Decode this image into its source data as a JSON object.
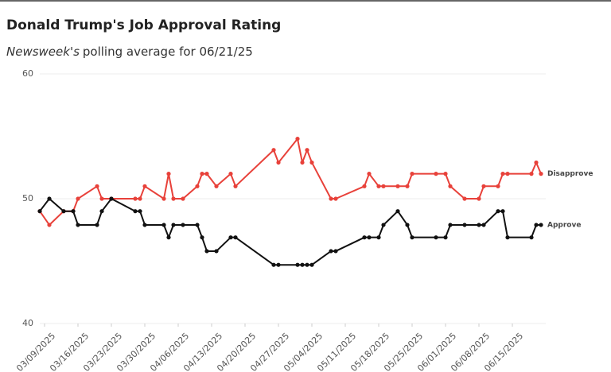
{
  "chart_data": {
    "type": "line",
    "title": "Donald Trump's Job Approval Rating",
    "subtitle_source": "Newsweek's",
    "subtitle": "polling average for 06/21/25",
    "x": [
      "2025-03-08",
      "2025-03-10",
      "2025-03-13",
      "2025-03-15",
      "2025-03-16",
      "2025-03-20",
      "2025-03-21",
      "2025-03-23",
      "2025-03-28",
      "2025-03-29",
      "2025-03-30",
      "2025-04-03",
      "2025-04-04",
      "2025-04-05",
      "2025-04-07",
      "2025-04-10",
      "2025-04-11",
      "2025-04-12",
      "2025-04-14",
      "2025-04-17",
      "2025-04-18",
      "2025-04-26",
      "2025-04-27",
      "2025-05-01",
      "2025-05-02",
      "2025-05-03",
      "2025-05-04",
      "2025-05-08",
      "2025-05-09",
      "2025-05-15",
      "2025-05-16",
      "2025-05-18",
      "2025-05-19",
      "2025-05-22",
      "2025-05-24",
      "2025-05-25",
      "2025-05-30",
      "2025-06-01",
      "2025-06-02",
      "2025-06-05",
      "2025-06-08",
      "2025-06-09",
      "2025-06-12",
      "2025-06-13",
      "2025-06-14",
      "2025-06-19",
      "2025-06-20",
      "2025-06-21"
    ],
    "series": [
      {
        "name": "Disapprove",
        "color": "#e8413a",
        "values": [
          49.0,
          47.9,
          49.0,
          49.0,
          50.0,
          51.0,
          50.0,
          50.0,
          50.0,
          50.0,
          51.0,
          50.0,
          52.0,
          50.0,
          50.0,
          51.0,
          52.0,
          52.0,
          51.0,
          52.0,
          51.0,
          53.9,
          52.9,
          54.8,
          52.9,
          53.9,
          52.9,
          50.0,
          50.0,
          51.0,
          52.0,
          51.0,
          51.0,
          51.0,
          51.0,
          52.0,
          52.0,
          52.0,
          51.0,
          50.0,
          50.0,
          51.0,
          51.0,
          52.0,
          52.0,
          52.0,
          52.9,
          52.0
        ]
      },
      {
        "name": "Approve",
        "color": "#111111",
        "values": [
          49.0,
          50.0,
          49.0,
          49.0,
          47.9,
          47.9,
          49.0,
          50.0,
          49.0,
          49.0,
          47.9,
          47.9,
          46.9,
          47.9,
          47.9,
          47.9,
          46.9,
          45.8,
          45.8,
          46.9,
          46.9,
          44.7,
          44.7,
          44.7,
          44.7,
          44.7,
          44.7,
          45.8,
          45.8,
          46.9,
          46.9,
          46.9,
          47.9,
          49.0,
          47.9,
          46.9,
          46.9,
          46.9,
          47.9,
          47.9,
          47.9,
          47.9,
          49.0,
          49.0,
          46.9,
          46.9,
          47.9,
          47.9
        ]
      }
    ],
    "xlim": [
      "2025-03-08",
      "2025-06-22"
    ],
    "xticks": [
      {
        "value": "2025-03-09",
        "label": "03/09/2025"
      },
      {
        "value": "2025-03-16",
        "label": "03/16/2025"
      },
      {
        "value": "2025-03-23",
        "label": "03/23/2025"
      },
      {
        "value": "2025-03-30",
        "label": "03/30/2025"
      },
      {
        "value": "2025-04-06",
        "label": "04/06/2025"
      },
      {
        "value": "2025-04-13",
        "label": "04/13/2025"
      },
      {
        "value": "2025-04-20",
        "label": "04/20/2025"
      },
      {
        "value": "2025-04-27",
        "label": "04/27/2025"
      },
      {
        "value": "2025-05-04",
        "label": "05/04/2025"
      },
      {
        "value": "2025-05-11",
        "label": "05/11/2025"
      },
      {
        "value": "2025-05-18",
        "label": "05/18/2025"
      },
      {
        "value": "2025-05-25",
        "label": "05/25/2025"
      },
      {
        "value": "2025-06-01",
        "label": "06/01/2025"
      },
      {
        "value": "2025-06-08",
        "label": "06/08/2025"
      },
      {
        "value": "2025-06-15",
        "label": "06/15/2025"
      }
    ],
    "ylim": [
      40,
      60
    ],
    "yticks": [
      40,
      50,
      60
    ],
    "grid": true
  }
}
